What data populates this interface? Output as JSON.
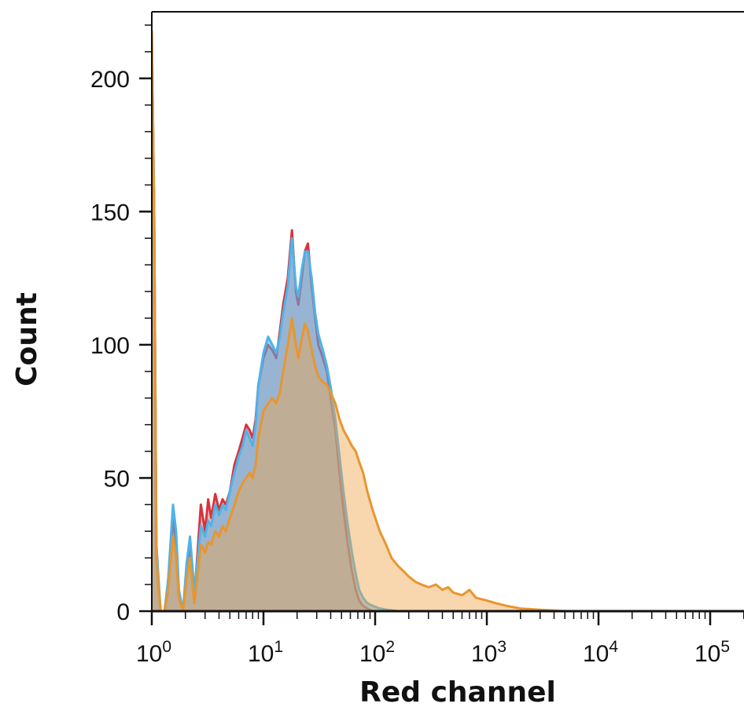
{
  "chart_data": {
    "type": "area",
    "title": "",
    "xlabel": "Red channel",
    "ylabel": "Count",
    "x_scale": "log10",
    "xlim": [
      1,
      300000
    ],
    "ylim": [
      0,
      225
    ],
    "y_ticks": [
      0,
      50,
      100,
      150,
      200
    ],
    "x_ticks": [
      {
        "value": 1,
        "base": "10",
        "exp": "0"
      },
      {
        "value": 10,
        "base": "10",
        "exp": "1"
      },
      {
        "value": 100,
        "base": "10",
        "exp": "2"
      },
      {
        "value": 1000,
        "base": "10",
        "exp": "3"
      },
      {
        "value": 10000,
        "base": "10",
        "exp": "4"
      },
      {
        "value": 100000,
        "base": "10",
        "exp": "5"
      }
    ],
    "series": [
      {
        "color": "#d9323a",
        "fill": "rgba(217,50,58,0.35)",
        "x": [
          1.0,
          1.05,
          1.1,
          1.2,
          1.3,
          1.4,
          1.55,
          1.65,
          1.75,
          1.9,
          2.05,
          2.2,
          2.4,
          2.55,
          2.75,
          3.0,
          3.2,
          3.4,
          3.7,
          4.0,
          4.3,
          4.6,
          5.0,
          5.5,
          6.0,
          6.5,
          7.0,
          7.5,
          8.0,
          8.5,
          9.0,
          10.0,
          11.0,
          12.0,
          13.0,
          14.0,
          15.0,
          16.5,
          18.0,
          19.5,
          20.5,
          22.0,
          23.5,
          25.0,
          27.0,
          29.0,
          31.0,
          34.0,
          37.0,
          40.0,
          44.0,
          48.0,
          52.0,
          57.0,
          62.0,
          67.0,
          72.0,
          78.0,
          85.0,
          95.0,
          110.0,
          150.0,
          300000.0
        ],
        "y": [
          218,
          150,
          20,
          0,
          0,
          10,
          35,
          25,
          5,
          0,
          15,
          25,
          5,
          20,
          40,
          30,
          42,
          35,
          44,
          38,
          42,
          40,
          45,
          55,
          60,
          65,
          70,
          68,
          65,
          72,
          85,
          95,
          100,
          98,
          95,
          105,
          115,
          125,
          143,
          120,
          115,
          125,
          135,
          138,
          122,
          110,
          100,
          95,
          90,
          80,
          68,
          52,
          38,
          25,
          15,
          8,
          4,
          2,
          1,
          0,
          0,
          0,
          0
        ]
      },
      {
        "color": "#4fb3e8",
        "fill": "rgba(79,179,232,0.55)",
        "x": [
          1.0,
          1.05,
          1.1,
          1.2,
          1.3,
          1.4,
          1.55,
          1.65,
          1.75,
          1.9,
          2.05,
          2.2,
          2.4,
          2.55,
          2.75,
          3.0,
          3.2,
          3.4,
          3.7,
          4.0,
          4.3,
          4.6,
          5.0,
          5.5,
          6.0,
          6.5,
          7.0,
          7.5,
          8.0,
          8.5,
          9.0,
          10.0,
          11.0,
          12.0,
          13.0,
          14.0,
          15.0,
          16.5,
          18.0,
          19.5,
          20.5,
          22.0,
          23.5,
          25.0,
          27.0,
          29.0,
          31.0,
          34.0,
          37.0,
          40.0,
          44.0,
          48.0,
          52.0,
          57.0,
          62.0,
          67.0,
          72.0,
          78.0,
          85.0,
          95.0,
          110.0,
          130.0,
          160.0,
          300000.0
        ],
        "y": [
          218,
          150,
          25,
          0,
          0,
          12,
          40,
          30,
          8,
          0,
          18,
          28,
          8,
          18,
          32,
          28,
          34,
          32,
          40,
          36,
          40,
          38,
          45,
          52,
          58,
          62,
          68,
          65,
          62,
          70,
          85,
          97,
          103,
          100,
          97,
          103,
          112,
          122,
          140,
          122,
          118,
          128,
          135,
          135,
          125,
          112,
          104,
          98,
          92,
          84,
          72,
          58,
          45,
          32,
          22,
          14,
          8,
          5,
          3,
          2,
          1,
          0.5,
          0,
          0
        ]
      },
      {
        "color": "#e8962e",
        "fill": "rgba(240,165,75,0.45)",
        "x": [
          1.0,
          1.05,
          1.1,
          1.2,
          1.3,
          1.4,
          1.55,
          1.65,
          1.75,
          1.9,
          2.05,
          2.2,
          2.4,
          2.55,
          2.75,
          3.0,
          3.2,
          3.4,
          3.7,
          4.0,
          4.3,
          4.6,
          5.0,
          5.5,
          6.0,
          6.5,
          7.0,
          7.5,
          8.0,
          8.5,
          9.0,
          10.0,
          11.0,
          12.0,
          13.0,
          14.0,
          15.0,
          16.5,
          18.0,
          19.5,
          20.5,
          22.0,
          23.5,
          25.0,
          27.0,
          29.0,
          31.0,
          34.0,
          37.0,
          40.0,
          44.0,
          48.0,
          52.0,
          57.0,
          62.0,
          67.0,
          72.0,
          78.0,
          85.0,
          95.0,
          110.0,
          125.0,
          140.0,
          160.0,
          180.0,
          200.0,
          230.0,
          260.0,
          300.0,
          350.0,
          400.0,
          450.0,
          500.0,
          600.0,
          700.0,
          800.0,
          1000.0,
          1200.0,
          1500.0,
          2000.0,
          3000.0,
          5000.0,
          300000.0
        ],
        "y": [
          218,
          150,
          20,
          0,
          0,
          8,
          28,
          20,
          5,
          0,
          12,
          20,
          3,
          12,
          25,
          22,
          26,
          25,
          30,
          28,
          32,
          30,
          35,
          40,
          45,
          48,
          50,
          52,
          50,
          55,
          65,
          75,
          78,
          80,
          78,
          82,
          90,
          100,
          110,
          100,
          95,
          102,
          108,
          105,
          98,
          92,
          88,
          86,
          85,
          82,
          78,
          72,
          68,
          65,
          62,
          60,
          56,
          52,
          45,
          38,
          30,
          25,
          20,
          17,
          15,
          13,
          11,
          10,
          9,
          10,
          8,
          9,
          7,
          6,
          8,
          5,
          4,
          3,
          2,
          1,
          0.5,
          0,
          0
        ]
      }
    ]
  }
}
